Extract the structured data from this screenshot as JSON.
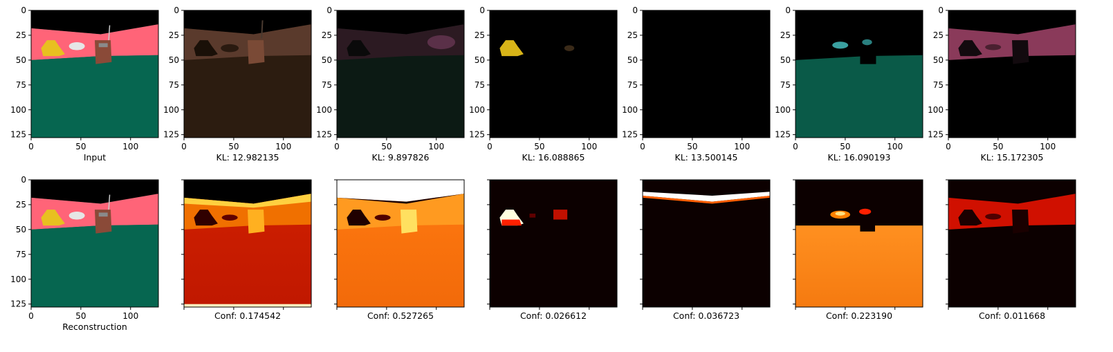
{
  "chart_data": {
    "type": "heatmap",
    "description_free": true,
    "axis_ticks": [
      "0",
      "25",
      "50",
      "75",
      "100",
      "125"
    ],
    "x_ticks": [
      "0",
      "50",
      "100"
    ],
    "xlim": [
      0,
      128
    ],
    "ylim": [
      128,
      0
    ],
    "top_row": [
      {
        "label": "Input",
        "kind": "scene"
      },
      {
        "label": "KL: 12.982135",
        "kind": "brown"
      },
      {
        "label": "KL: 9.897826",
        "kind": "dimpink"
      },
      {
        "label": "KL: 16.088865",
        "kind": "yellowobj"
      },
      {
        "label": "KL: 13.500145",
        "kind": "black"
      },
      {
        "label": "KL: 16.090193",
        "kind": "teal"
      },
      {
        "label": "KL: 15.172305",
        "kind": "pinkwall"
      }
    ],
    "bottom_row": [
      {
        "label": "Reconstruction",
        "kind": "scene"
      },
      {
        "label": "Conf: 0.174542",
        "kind": "heatA"
      },
      {
        "label": "Conf: 0.527265",
        "kind": "heatB"
      },
      {
        "label": "Conf: 0.026612",
        "kind": "heatC"
      },
      {
        "label": "Conf: 0.036723",
        "kind": "heatD"
      },
      {
        "label": "Conf: 0.223190",
        "kind": "heatE"
      },
      {
        "label": "Conf: 0.011668",
        "kind": "heatF"
      }
    ]
  }
}
